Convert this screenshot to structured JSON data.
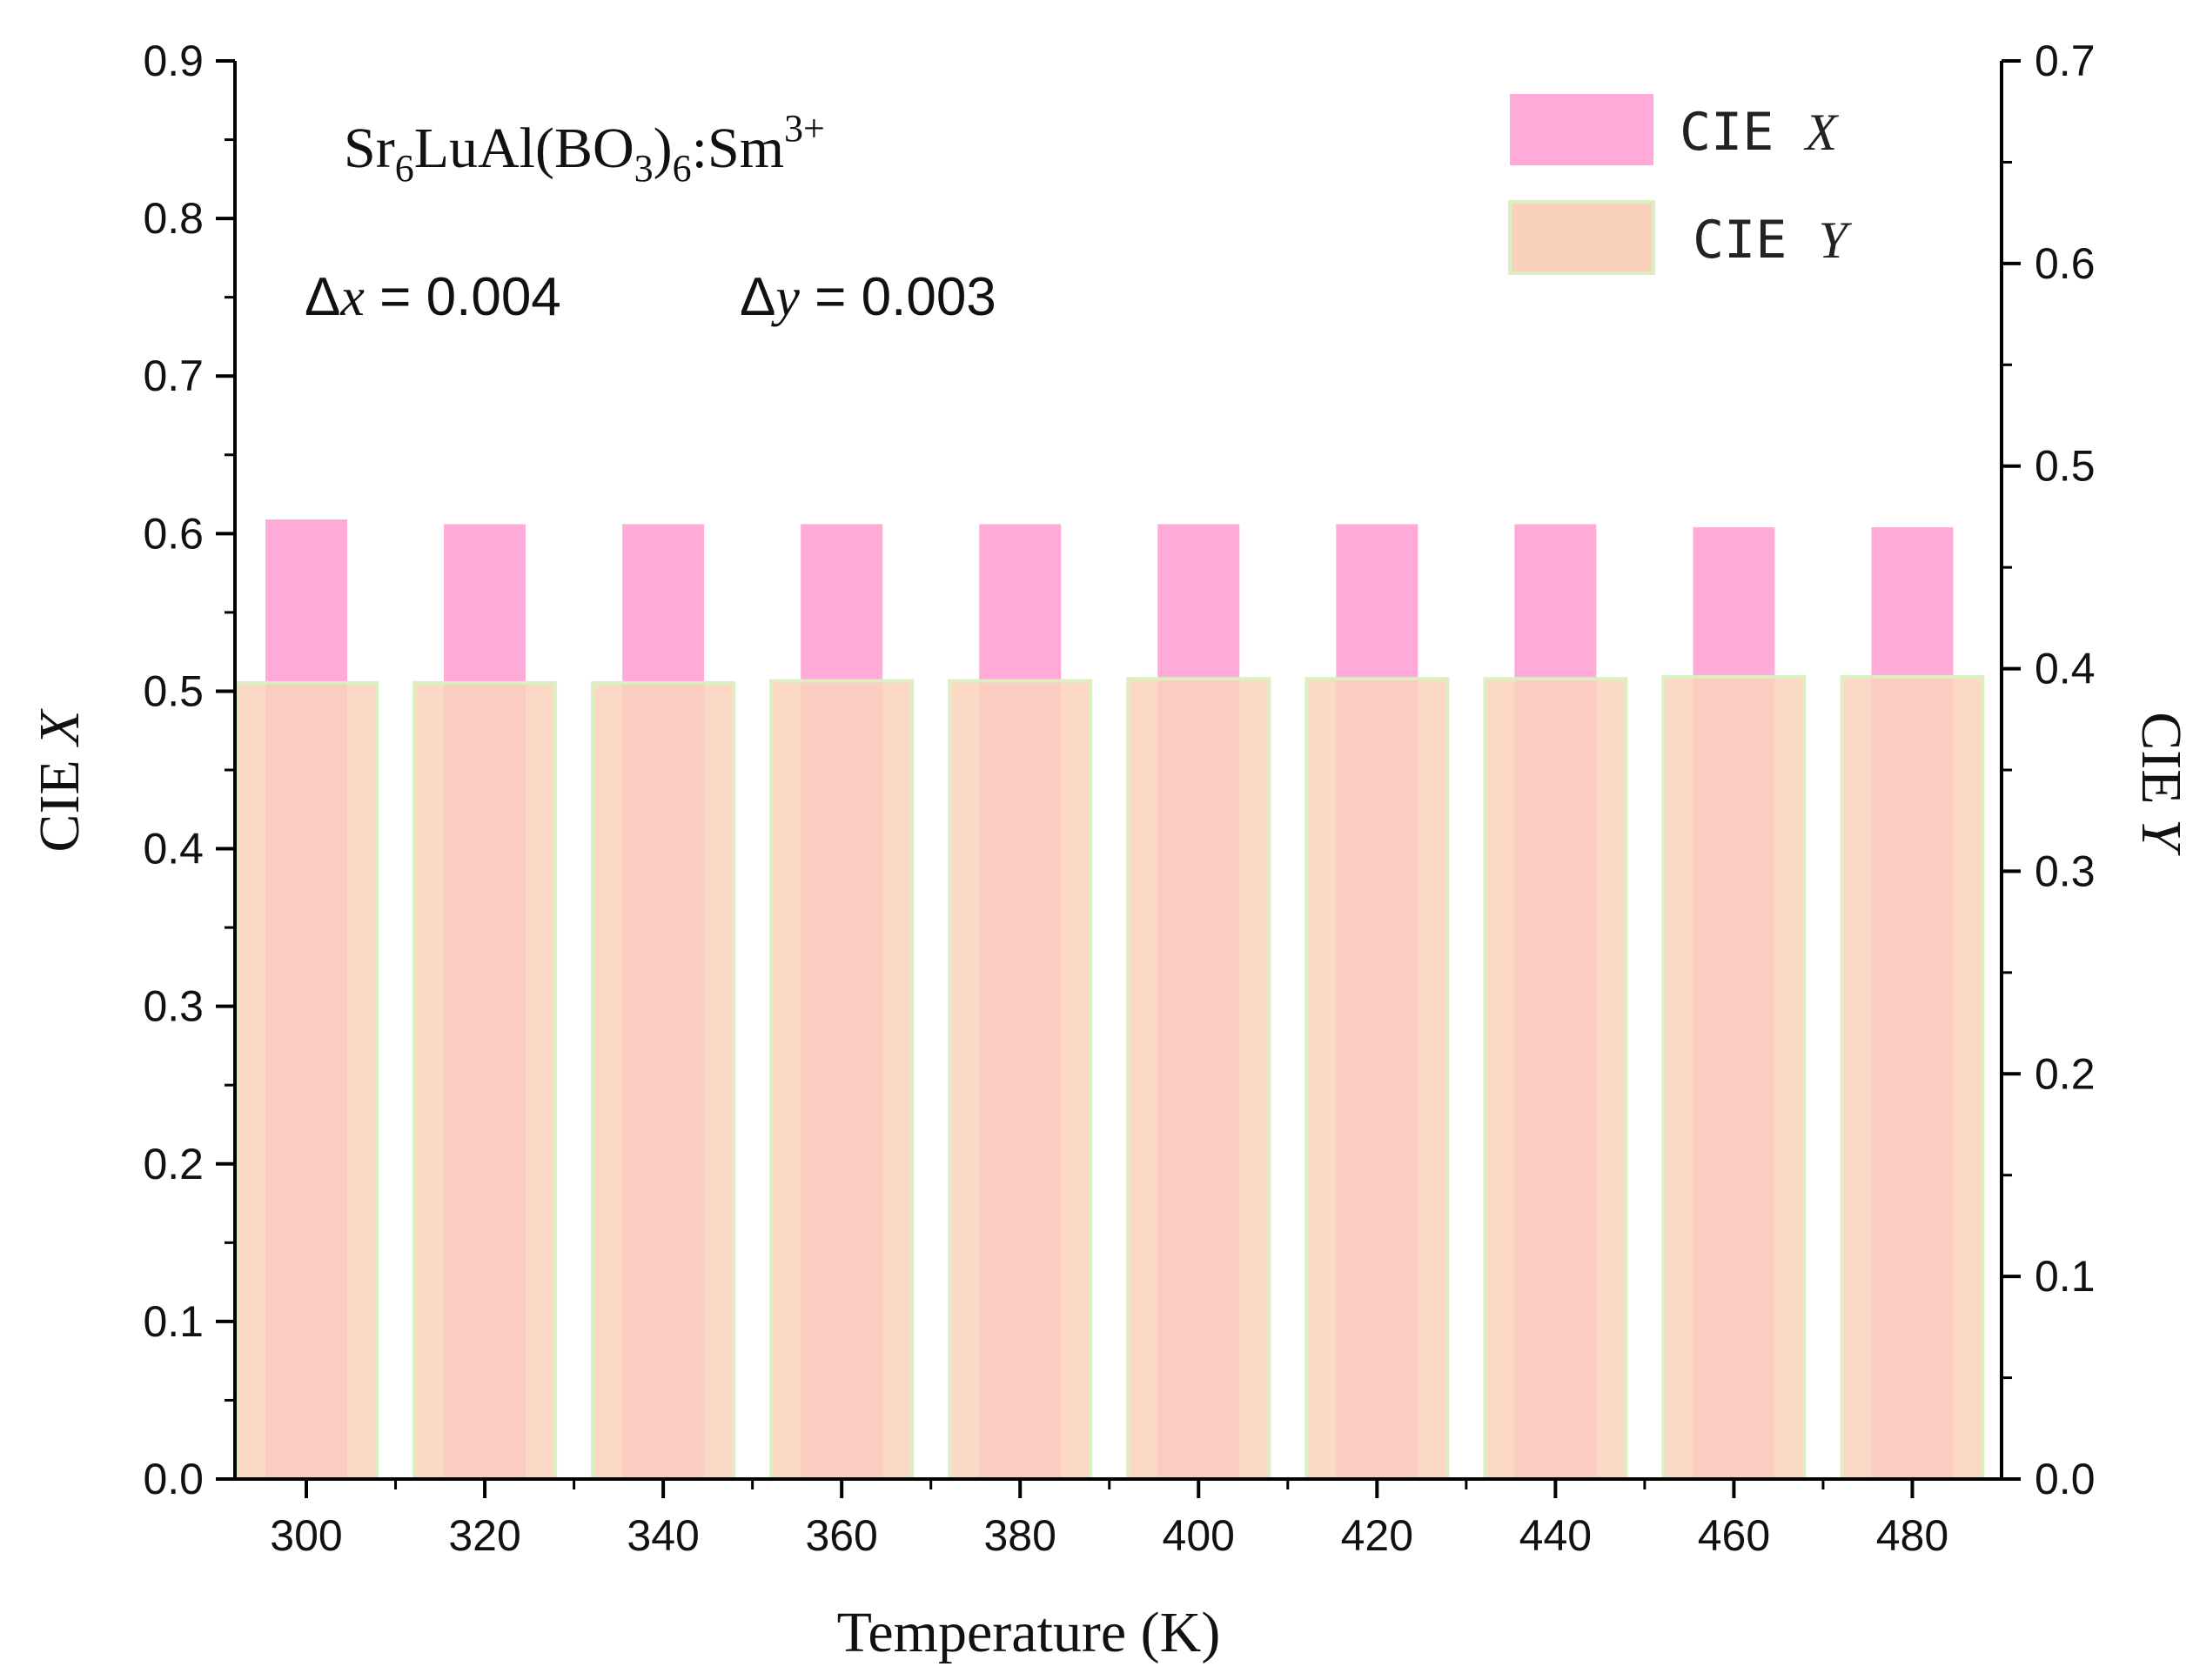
{
  "chart_data": {
    "type": "bar",
    "title": "",
    "compound": {
      "base": "Sr",
      "sub1": "6",
      "mid": "LuAl(BO",
      "sub2": "3",
      "close": ")",
      "sub3": "6",
      "dopant": ":Sm",
      "sup": "3+"
    },
    "annotations": {
      "delta_x": {
        "symbol": "Δ",
        "var": "x",
        "eq": " = ",
        "value": "0.004"
      },
      "delta_y": {
        "symbol": "Δ",
        "var": "y",
        "eq": " = ",
        "value": "0.003"
      }
    },
    "x": [
      300,
      320,
      340,
      360,
      380,
      400,
      420,
      440,
      460,
      480
    ],
    "xlabel": "Temperature (K)",
    "xlim": [
      292,
      490
    ],
    "ylabel_left": {
      "base": "CIE ",
      "var": "X"
    },
    "ylabel_right": {
      "base": "CIE ",
      "var": "Y"
    },
    "ylim_left": [
      0,
      0.9
    ],
    "ylim_right": [
      0,
      0.7
    ],
    "yticks_left": [
      "0.0",
      "0.1",
      "0.2",
      "0.3",
      "0.4",
      "0.5",
      "0.6",
      "0.7",
      "0.8",
      "0.9"
    ],
    "yticks_right": [
      "0.0",
      "0.1",
      "0.2",
      "0.3",
      "0.4",
      "0.5",
      "0.6",
      "0.7"
    ],
    "series": [
      {
        "name": "CIE X",
        "label_base": "CIE ",
        "label_var": "X",
        "axis": "left",
        "color": "#ffaad8",
        "values": [
          0.609,
          0.606,
          0.606,
          0.606,
          0.606,
          0.606,
          0.606,
          0.606,
          0.604,
          0.604
        ]
      },
      {
        "name": "CIE Y",
        "label_base": "CIE ",
        "label_var": "Y",
        "axis": "right",
        "color": "#fad2bc",
        "edge": "#dcefc0",
        "values": [
          0.393,
          0.393,
          0.393,
          0.394,
          0.394,
          0.395,
          0.395,
          0.395,
          0.396,
          0.396
        ]
      }
    ],
    "legend": "top-right",
    "grid": false
  }
}
